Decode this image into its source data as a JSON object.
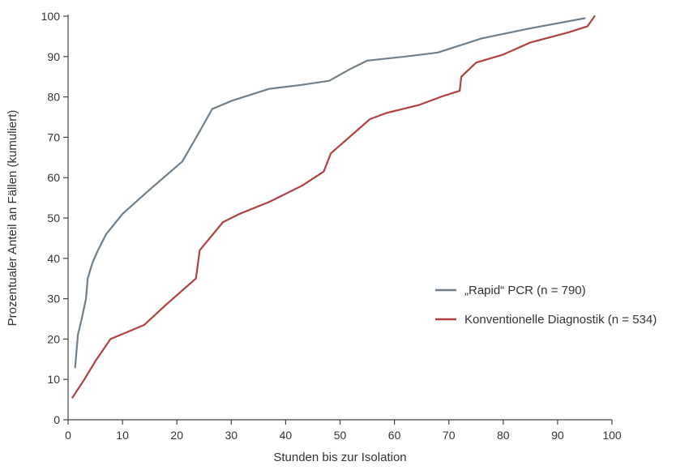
{
  "chart_data": {
    "type": "line",
    "title": "",
    "xlabel": "Stunden bis zur Isolation",
    "ylabel": "Prozentualer Anteil an Fällen (kumuliert)",
    "xlim": [
      0,
      100
    ],
    "ylim": [
      0,
      100
    ],
    "xticks": [
      0,
      10,
      20,
      30,
      40,
      50,
      60,
      70,
      80,
      90,
      100
    ],
    "yticks": [
      0,
      10,
      20,
      30,
      40,
      50,
      60,
      70,
      80,
      90,
      100
    ],
    "grid": false,
    "legend_position": "right",
    "series": [
      {
        "name": "„Rapid“ PCR (n = 790)",
        "color": "#6f7f8c",
        "points": [
          [
            1.3,
            13
          ],
          [
            1.8,
            21
          ],
          [
            2.5,
            25
          ],
          [
            3.3,
            30
          ],
          [
            3.6,
            35
          ],
          [
            4.5,
            39
          ],
          [
            5.5,
            42
          ],
          [
            7,
            46
          ],
          [
            10,
            51
          ],
          [
            15,
            57
          ],
          [
            21,
            64
          ],
          [
            24,
            71
          ],
          [
            26.5,
            77
          ],
          [
            30,
            79
          ],
          [
            37,
            82
          ],
          [
            43,
            83
          ],
          [
            48,
            84
          ],
          [
            52,
            87
          ],
          [
            55,
            89
          ],
          [
            62,
            90
          ],
          [
            68,
            91
          ],
          [
            76,
            94.5
          ],
          [
            85,
            97
          ],
          [
            95,
            99.5
          ]
        ]
      },
      {
        "name": "Konventionelle Diagnostik (n = 534)",
        "color": "#b0413e",
        "points": [
          [
            0.8,
            5.5
          ],
          [
            3,
            10
          ],
          [
            5,
            14.5
          ],
          [
            7.8,
            20
          ],
          [
            14,
            23.5
          ],
          [
            18,
            28.5
          ],
          [
            23.5,
            35
          ],
          [
            24.2,
            42
          ],
          [
            28.5,
            49
          ],
          [
            31.5,
            51
          ],
          [
            37,
            54
          ],
          [
            43,
            58
          ],
          [
            47,
            61.5
          ],
          [
            48.3,
            66
          ],
          [
            55.5,
            74.5
          ],
          [
            58.5,
            76
          ],
          [
            64.5,
            78
          ],
          [
            68.5,
            80
          ],
          [
            72,
            81.5
          ],
          [
            72.3,
            85
          ],
          [
            75,
            88.5
          ],
          [
            80,
            90.5
          ],
          [
            85,
            93.5
          ],
          [
            92,
            96
          ],
          [
            95.5,
            97.5
          ],
          [
            96.8,
            100
          ]
        ]
      }
    ]
  }
}
